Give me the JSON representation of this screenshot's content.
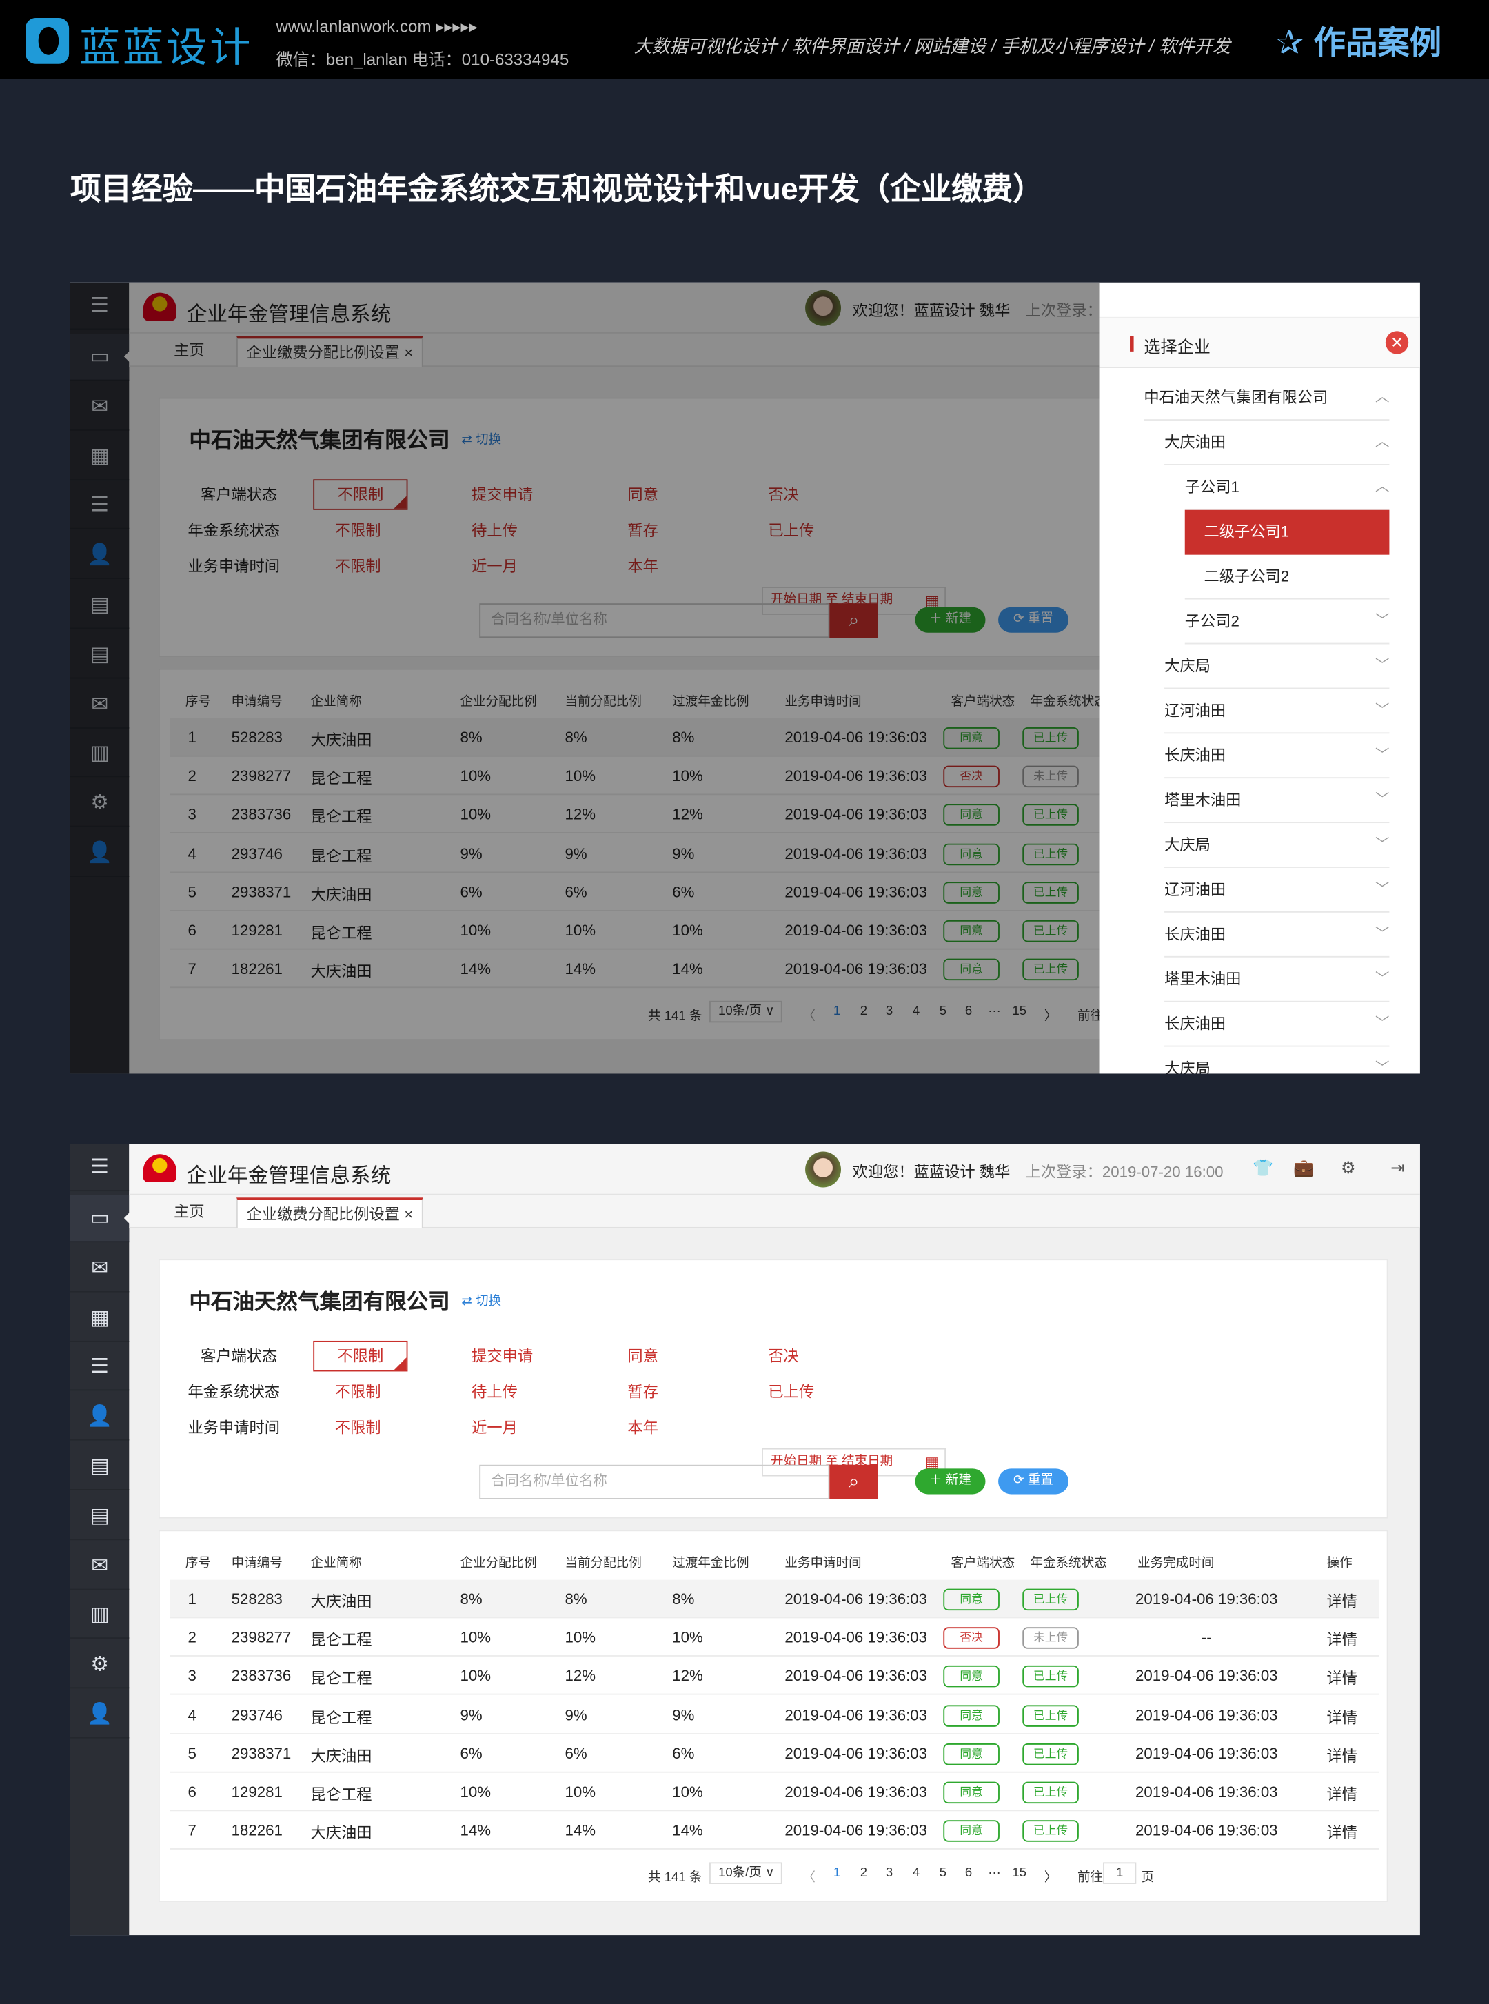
{
  "banner": {
    "logo_text": "蓝蓝设计",
    "site": "www.lanlanwork.com ▸▸▸▸▸",
    "contact": "微信：ben_lanlan    电话：010-63334945",
    "services": "大数据可视化设计 / 软件界面设计 / 网站建设 / 手机及小程序设计 / 软件开发",
    "works_icon": "star-icon",
    "works": "作品案例"
  },
  "page_title": "项目经验——中国石油年金系统交互和视觉设计和vue开发（企业缴费）",
  "app": {
    "sidebar_icons": [
      "menu-icon",
      "monitor-icon",
      "chat-settings-icon",
      "dashboard-icon",
      "database-icon",
      "user-settings-icon",
      "inbox-icon",
      "document-settings-icon",
      "chat-settings-icon",
      "books-icon",
      "gear-icon",
      "user-settings-icon"
    ],
    "header": {
      "title": "企业年金管理信息系统",
      "welcome": "欢迎您！蓝蓝设计   魏华",
      "last_login": "上次登录：2019-07-20  16:00",
      "icons": [
        "shirt-icon",
        "briefcase-icon",
        "gear-icon",
        "logout-icon"
      ]
    },
    "tabs": [
      {
        "label": "主页"
      },
      {
        "label": "企业缴费分配比例设置 ×"
      }
    ],
    "filter": {
      "company": "中石油天然气集团有限公司",
      "switch": "⇄ 切换",
      "rows": [
        {
          "label": "客户端状态",
          "options": [
            "不限制",
            "提交申请",
            "同意",
            "否决"
          ]
        },
        {
          "label": "年金系统状态",
          "options": [
            "不限制",
            "待上传",
            "暂存",
            "已上传"
          ]
        },
        {
          "label": "业务申请时间",
          "options": [
            "不限制",
            "近一月",
            "本年"
          ]
        }
      ],
      "date_placeholder": "开始日期  至  结束日期",
      "search_placeholder": "合同名称/单位名称",
      "new_label": "新建",
      "reset_label": "重置"
    },
    "table": {
      "headers": [
        "序号",
        "申请编号",
        "企业简称",
        "企业分配比例",
        "当前分配比例",
        "过渡年金比例",
        "业务申请时间",
        "客户端状态",
        "年金系统状态",
        "业务完成时间",
        "操作"
      ],
      "rows": [
        [
          "1",
          "528283",
          "大庆油田",
          "8%",
          "8%",
          "8%",
          "2019-04-06 19:36:03",
          "同意",
          "已上传",
          "2019-04-06 19:36:03",
          "详情"
        ],
        [
          "2",
          "2398277",
          "昆仑工程",
          "10%",
          "10%",
          "10%",
          "2019-04-06 19:36:03",
          "否决",
          "未上传",
          "--",
          "详情"
        ],
        [
          "3",
          "2383736",
          "昆仑工程",
          "10%",
          "12%",
          "12%",
          "2019-04-06 19:36:03",
          "同意",
          "已上传",
          "2019-04-06 19:36:03",
          "详情"
        ],
        [
          "4",
          "293746",
          "昆仑工程",
          "9%",
          "9%",
          "9%",
          "2019-04-06 19:36:03",
          "同意",
          "已上传",
          "2019-04-06 19:36:03",
          "详情"
        ],
        [
          "5",
          "2938371",
          "大庆油田",
          "6%",
          "6%",
          "6%",
          "2019-04-06 19:36:03",
          "同意",
          "已上传",
          "2019-04-06 19:36:03",
          "详情"
        ],
        [
          "6",
          "129281",
          "昆仑工程",
          "10%",
          "10%",
          "10%",
          "2019-04-06 19:36:03",
          "同意",
          "已上传",
          "2019-04-06 19:36:03",
          "详情"
        ],
        [
          "7",
          "182261",
          "大庆油田",
          "14%",
          "14%",
          "14%",
          "2019-04-06 19:36:03",
          "同意",
          "已上传",
          "2019-04-06 19:36:03",
          "详情"
        ]
      ]
    },
    "pagination": {
      "total": "共 141 条",
      "page_size": "10条/页 ∨",
      "prev": "〈",
      "pages": [
        "1",
        "2",
        "3",
        "4",
        "5",
        "6",
        "···",
        "15"
      ],
      "current": "1",
      "next": "〉",
      "goto": "前往",
      "goto_value": "1",
      "page_unit": "页"
    }
  },
  "drawer": {
    "title": "选择企业",
    "items": [
      {
        "label": "中石油天然气集团有限公司",
        "level": 0,
        "state": "up"
      },
      {
        "label": "大庆油田",
        "level": 1,
        "state": "up"
      },
      {
        "label": "子公司1",
        "level": 2,
        "state": "up"
      },
      {
        "label": "二级子公司1",
        "level": 3,
        "selected": true
      },
      {
        "label": "二级子公司2",
        "level": 3
      },
      {
        "label": "子公司2",
        "level": 2,
        "state": "down"
      },
      {
        "label": "大庆局",
        "level": 1,
        "state": "down"
      },
      {
        "label": "辽河油田",
        "level": 1,
        "state": "down"
      },
      {
        "label": "长庆油田",
        "level": 1,
        "state": "down"
      },
      {
        "label": "塔里木油田",
        "level": 1,
        "state": "down"
      },
      {
        "label": "大庆局",
        "level": 1,
        "state": "down"
      },
      {
        "label": "辽河油田",
        "level": 1,
        "state": "down"
      },
      {
        "label": "长庆油田",
        "level": 1,
        "state": "down"
      },
      {
        "label": "塔里木油田",
        "level": 1,
        "state": "down"
      },
      {
        "label": "长庆油田",
        "level": 1,
        "state": "down"
      },
      {
        "label": "大庆局",
        "level": 1,
        "state": "down"
      }
    ]
  },
  "colors": {
    "accent_red": "#c9302c",
    "agree_green": "#2fa82f",
    "reset_blue": "#3e9af0",
    "sidebar": "#2b2e35"
  }
}
